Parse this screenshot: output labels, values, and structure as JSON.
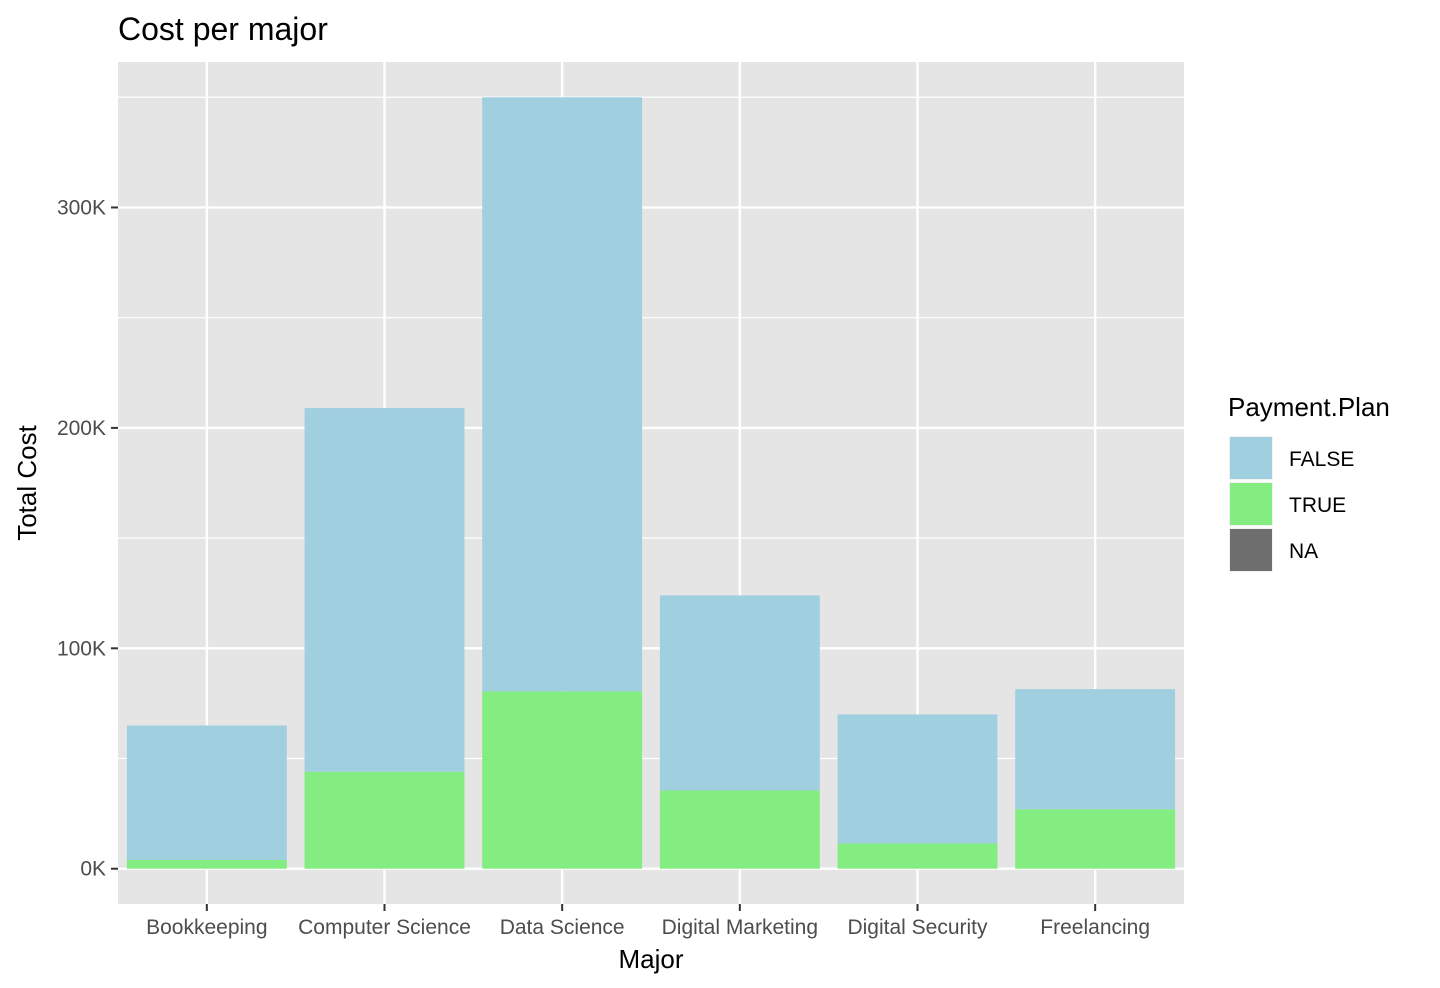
{
  "chart_data": {
    "type": "bar",
    "stacked": true,
    "title": "Cost per major",
    "xlabel": "Major",
    "ylabel": "Total Cost",
    "categories": [
      "Bookkeeping",
      "Computer Science",
      "Data Science",
      "Digital Marketing",
      "Digital Security",
      "Freelancing"
    ],
    "series": [
      {
        "name": "TRUE",
        "color": "#83ed81",
        "values": [
          4000,
          44000,
          80500,
          35500,
          11500,
          27000
        ]
      },
      {
        "name": "FALSE",
        "color": "#a0cfe0",
        "values": [
          61000,
          165000,
          269500,
          88500,
          58500,
          54500
        ]
      }
    ],
    "ylim": [
      -16000,
      366000
    ],
    "yticks": [
      0,
      100000,
      200000,
      300000
    ],
    "ytick_labels": [
      "0K",
      "100K",
      "200K",
      "300K"
    ],
    "grid": true,
    "legend": {
      "title": "Payment.Plan",
      "position": "right",
      "items": [
        {
          "label": "FALSE",
          "color": "#a0cfe0"
        },
        {
          "label": "TRUE",
          "color": "#83ed81"
        },
        {
          "label": "NA",
          "color": "#6e6e6e"
        }
      ]
    }
  }
}
